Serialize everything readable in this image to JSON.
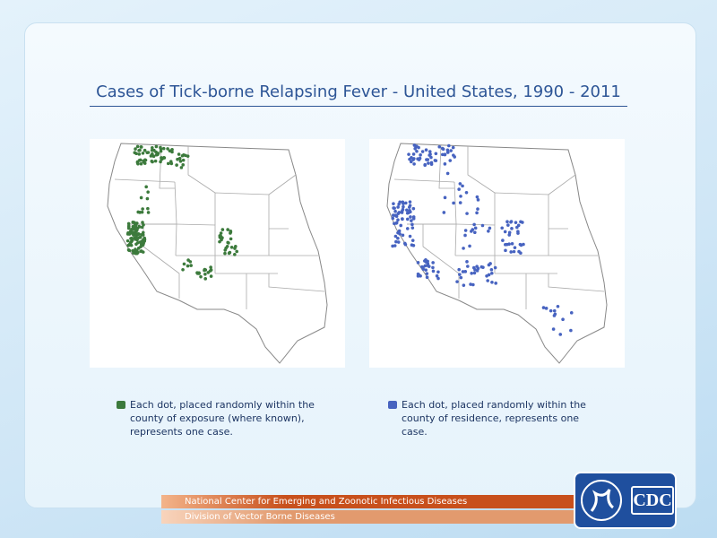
{
  "title": "Cases of Tick-borne Relapsing Fever - United States, 1990 - 2011",
  "maps": [
    {
      "legend": "Each dot, placed randomly within the county of exposure (where known), represents one case.",
      "color": "#3c7a3c"
    },
    {
      "legend": "Each dot, placed randomly within the county of residence, represents one case.",
      "color": "#4763c0"
    }
  ],
  "footer": {
    "center": "National Center for Emerging and Zoonotic Infectious Diseases",
    "division": "Division of Vector Borne Diseases"
  },
  "logo": "CDC"
}
